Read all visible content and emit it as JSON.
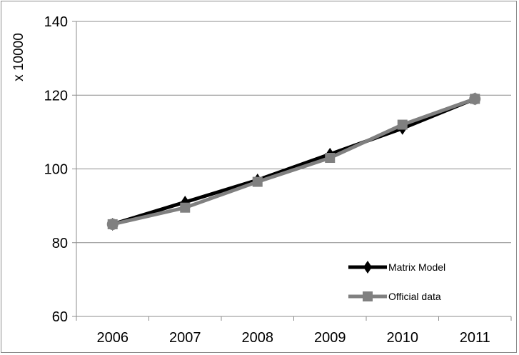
{
  "chart_data": {
    "type": "line",
    "title": "",
    "xlabel": "",
    "ylabel": "x 10000",
    "categories": [
      "2006",
      "2007",
      "2008",
      "2009",
      "2010",
      "2011"
    ],
    "ylim": [
      60,
      140
    ],
    "yticks": [
      60,
      80,
      100,
      120,
      140
    ],
    "grid": true,
    "legend_position": "bottom-right",
    "series": [
      {
        "name": "Matrix Model",
        "values": [
          85,
          91,
          97,
          104,
          111,
          119
        ],
        "color": "#000000",
        "marker": "diamond"
      },
      {
        "name": "Official data",
        "values": [
          85,
          89.5,
          96.5,
          103,
          112,
          119
        ],
        "color": "#808080",
        "marker": "square"
      }
    ]
  }
}
